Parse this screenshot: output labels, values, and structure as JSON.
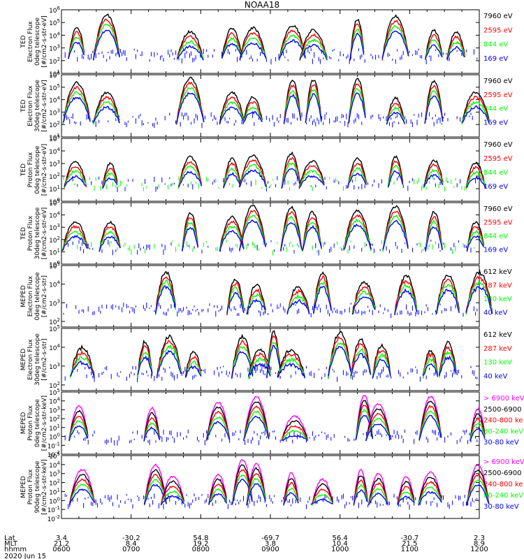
{
  "title": "NOAA18",
  "colors": {
    "blue": "#0000ff",
    "red": "#ff0000",
    "green": "#00ff00",
    "black": "#000000",
    "magenta": "#ff00ff"
  },
  "chart_data": [
    {
      "type": "scatter",
      "ylabel": [
        "TED",
        "Electron Flux",
        "0deg telescope",
        "[#/cm2-s-str-eV]"
      ],
      "y_log_range": [
        1,
        6
      ],
      "y_tick_labels": [
        "10^1",
        "10^2",
        "10^3",
        "10^4",
        "10^5",
        "10^6"
      ],
      "series": [
        {
          "name": "7960 eV",
          "color": "#000000"
        },
        {
          "name": "2595 eV",
          "color": "#ff0000"
        },
        {
          "name": "844 eV",
          "color": "#00ff00"
        },
        {
          "name": "169 eV",
          "color": "#0000ff"
        }
      ],
      "bursts_hour": [
        6.22,
        6.65,
        7.85,
        8.45,
        8.75,
        9.32,
        9.62,
        10.25,
        10.8,
        11.35,
        11.67
      ]
    },
    {
      "type": "scatter",
      "ylabel": [
        "TED",
        "Electron Flux",
        "30deg telescope",
        "[#/cm2-s-str-eV]"
      ],
      "y_log_range": [
        1,
        6
      ],
      "y_tick_labels": [
        "10^1",
        "10^2",
        "10^3",
        "10^4",
        "10^5",
        "10^6"
      ],
      "series": [
        {
          "name": "7960 eV",
          "color": "#000000"
        },
        {
          "name": "2595 eV",
          "color": "#ff0000"
        },
        {
          "name": "844 eV",
          "color": "#00ff00"
        },
        {
          "name": "169 eV",
          "color": "#0000ff"
        }
      ],
      "bursts_hour": [
        6.22,
        6.65,
        7.85,
        8.45,
        8.75,
        9.32,
        9.62,
        10.25,
        10.8,
        11.35,
        11.95
      ]
    },
    {
      "type": "scatter",
      "ylabel": [
        "TED",
        "Proton Flux",
        "0deg telescope",
        "[#/cm2-s-str-eV]"
      ],
      "y_log_range": [
        0,
        5
      ],
      "y_tick_labels": [
        "10^0",
        "10^1",
        "10^2",
        "10^3",
        "10^4",
        "10^5"
      ],
      "series": [
        {
          "name": "7960 eV",
          "color": "#000000"
        },
        {
          "name": "2595 eV",
          "color": "#ff0000"
        },
        {
          "name": "844 eV",
          "color": "#00ff00"
        },
        {
          "name": "169 eV",
          "color": "#0000ff"
        }
      ],
      "bursts_hour": [
        6.2,
        6.7,
        7.85,
        8.45,
        8.75,
        9.3,
        9.6,
        10.25,
        10.8,
        11.35,
        11.95
      ]
    },
    {
      "type": "scatter",
      "ylabel": [
        "TED",
        "Proton Flux",
        "30deg telescope",
        "[#/cm2-s-str-eV]"
      ],
      "y_log_range": [
        0,
        5
      ],
      "y_tick_labels": [
        "10^0",
        "10^1",
        "10^2",
        "10^3",
        "10^4",
        "10^5"
      ],
      "series": [
        {
          "name": "7960 eV",
          "color": "#000000"
        },
        {
          "name": "2595 eV",
          "color": "#ff0000"
        },
        {
          "name": "844 eV",
          "color": "#00ff00"
        },
        {
          "name": "169 eV",
          "color": "#0000ff"
        }
      ],
      "bursts_hour": [
        6.2,
        6.7,
        7.85,
        8.45,
        8.75,
        9.3,
        9.6,
        10.25,
        10.8,
        11.35,
        11.95
      ]
    },
    {
      "type": "scatter",
      "ylabel": [
        "MEPED",
        "Electron Flux",
        "0deg telescope",
        "[#/cm2-s-str]"
      ],
      "y_log_range": [
        1.7,
        5
      ],
      "y_tick_labels": [
        "10^2",
        "10^3",
        "10^4",
        "10^5"
      ],
      "series": [
        {
          "name": "612 keV",
          "color": "#000000"
        },
        {
          "name": "287 keV",
          "color": "#ff0000"
        },
        {
          "name": "130 keV",
          "color": "#00ff00"
        },
        {
          "name": "40 keV",
          "color": "#0000ff"
        }
      ],
      "bursts_hour": [
        7.5,
        8.5,
        8.8,
        9.4,
        9.75,
        10.35,
        10.95,
        11.55,
        12.0
      ]
    },
    {
      "type": "scatter",
      "ylabel": [
        "MEPED",
        "Electron Flux",
        "30deg telescope",
        "[#/cm2-s-str]"
      ],
      "y_log_range": [
        1.7,
        5
      ],
      "y_tick_labels": [
        "10^2",
        "10^3",
        "10^4",
        "10^5"
      ],
      "series": [
        {
          "name": "612 keV",
          "color": "#000000"
        },
        {
          "name": "287 keV",
          "color": "#ff0000"
        },
        {
          "name": "130 keV",
          "color": "#00ff00"
        },
        {
          "name": "40 keV",
          "color": "#0000ff"
        }
      ],
      "bursts_hour": [
        6.3,
        7.2,
        7.55,
        7.9,
        8.6,
        8.85,
        9.05,
        9.3,
        10.0,
        10.3,
        10.6,
        11.3,
        11.55
      ]
    },
    {
      "type": "scatter",
      "ylabel": [
        "MEPED",
        "Proton Flux",
        "0deg telescope",
        "[#/cm2-s-str-keV]"
      ],
      "y_log_range": [
        -2,
        5
      ],
      "y_tick_labels": [
        "10^-2",
        "10^-1",
        "10^0",
        "10^1",
        "10^2",
        "10^3",
        "10^4",
        "10^5"
      ],
      "series": [
        {
          "name": "> 6900 keV",
          "color": "#ff00ff"
        },
        {
          "name": "2500-6900",
          "color": "#000000"
        },
        {
          "name": "240-800 ke",
          "color": "#ff0000"
        },
        {
          "name": "80-240 keV",
          "color": "#00ff00"
        },
        {
          "name": "30-80 keV",
          "color": "#0000ff"
        }
      ],
      "bursts_hour": [
        6.25,
        7.3,
        8.25,
        8.8,
        9.35,
        10.35,
        10.55,
        11.3,
        11.98
      ]
    },
    {
      "type": "scatter",
      "ylabel": [
        "MEPED",
        "Proton Flux",
        "90deg telescope",
        "[#/cm2-s-str-keV]"
      ],
      "y_log_range": [
        -2,
        5
      ],
      "y_tick_labels": [
        "10^-2",
        "10^-1",
        "10^0",
        "10^1",
        "10^2",
        "10^3",
        "10^4",
        "10^5"
      ],
      "series": [
        {
          "name": "> 6900 keV",
          "color": "#ff00ff"
        },
        {
          "name": "2500-6900",
          "color": "#000000"
        },
        {
          "name": "240-800 ke",
          "color": "#ff0000"
        },
        {
          "name": "80-240 keV",
          "color": "#00ff00"
        },
        {
          "name": "30-80 keV",
          "color": "#0000ff"
        }
      ],
      "bursts_hour": [
        6.3,
        7.35,
        7.6,
        8.25,
        8.6,
        8.8,
        9.3,
        9.75,
        10.3,
        10.55,
        10.95,
        11.3,
        11.98
      ]
    }
  ],
  "x_axis": {
    "hours": [
      6,
      7,
      8,
      9,
      10,
      11,
      12
    ],
    "row_labels": [
      "Lat",
      "MLT",
      "hhmm"
    ],
    "lat": [
      "3.4",
      "-30.2",
      "54.8",
      "-69.7",
      "56.4",
      "-30.7",
      "2.3"
    ],
    "mlt": [
      "21.2",
      "8.4",
      "19.2",
      "3.8",
      "10.4",
      "21.5",
      "8.9"
    ],
    "hhmm": [
      "0600",
      "0700",
      "0800",
      "0900",
      "1000",
      "1100",
      "1200"
    ],
    "date": "2020 Jun 15"
  }
}
